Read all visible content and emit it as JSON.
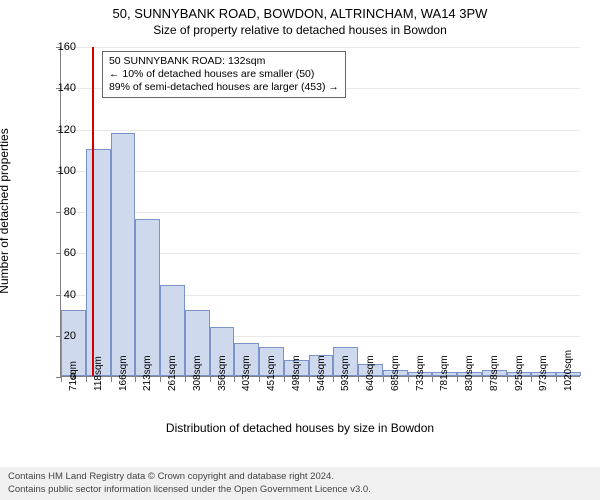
{
  "title_main": "50, SUNNYBANK ROAD, BOWDON, ALTRINCHAM, WA14 3PW",
  "title_sub": "Size of property relative to detached houses in Bowdon",
  "ylabel": "Number of detached properties",
  "xlabel": "Distribution of detached houses by size in Bowdon",
  "chart": {
    "type": "histogram",
    "ylim": [
      0,
      160
    ],
    "ytick_step": 20,
    "bar_fill": "#cfd9ee",
    "bar_stroke": "#7a94c9",
    "grid_color": "#e8e8e8",
    "axis_color": "#808080",
    "background": "#ffffff",
    "x_labels": [
      "71sqm",
      "118sqm",
      "166sqm",
      "213sqm",
      "261sqm",
      "308sqm",
      "356sqm",
      "403sqm",
      "451sqm",
      "498sqm",
      "546sqm",
      "593sqm",
      "640sqm",
      "685sqm",
      "733sqm",
      "781sqm",
      "830sqm",
      "878sqm",
      "925sqm",
      "973sqm",
      "1020sqm"
    ],
    "values": [
      32,
      110,
      118,
      76,
      44,
      32,
      24,
      16,
      14,
      8,
      10,
      14,
      6,
      3,
      2,
      2,
      2,
      3,
      2,
      2,
      2
    ],
    "marker_x_index": 1.25,
    "marker_color": "#d30000"
  },
  "annotation": {
    "line1": "50 SUNNYBANK ROAD: 132sqm",
    "line2": "← 10% of detached houses are smaller (50)",
    "line3": "89% of semi-detached houses are larger (453) →",
    "border": "#666666",
    "bg": "#ffffff",
    "fontsize": 10.5
  },
  "footer": {
    "line1": "Contains HM Land Registry data © Crown copyright and database right 2024.",
    "line2": "Contains public sector information licensed under the Open Government Licence v3.0.",
    "bg": "#f0f0f0",
    "color": "#444444"
  }
}
